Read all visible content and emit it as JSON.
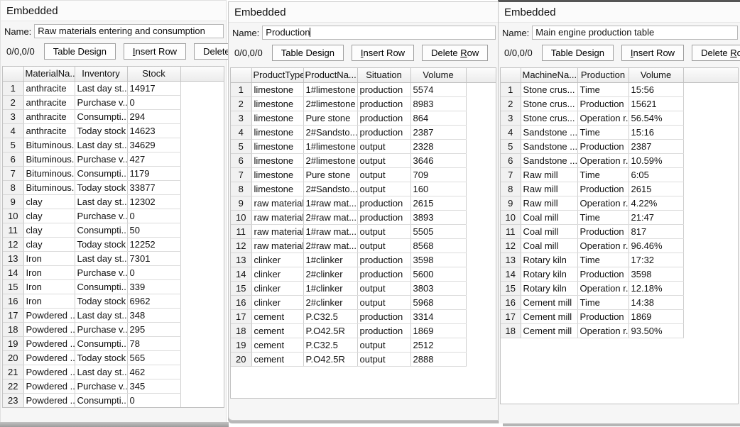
{
  "panels": [
    {
      "title": "Embedded",
      "name_label": "Name:",
      "name_value": "Raw materials entering and consumption",
      "status": "0/0,0/0",
      "buttons": {
        "table_design": "Table Design",
        "insert_row_pre": "",
        "insert_row_accel": "I",
        "insert_row_post": "nsert Row",
        "delete_row_pre": "Delete ",
        "delete_row_accel": "R",
        "delete_row_post": "ow"
      },
      "columns": [
        "MaterialNa...",
        "Inventory",
        "Stock"
      ],
      "rows": [
        [
          "1",
          "anthracite",
          "Last day st...",
          "14917"
        ],
        [
          "2",
          "anthracite",
          "Purchase v...",
          "0"
        ],
        [
          "3",
          "anthracite",
          "Consumpti...",
          "294"
        ],
        [
          "4",
          "anthracite",
          "Today stock",
          "14623"
        ],
        [
          "5",
          "Bituminous...",
          "Last day st...",
          "34629"
        ],
        [
          "6",
          "Bituminous...",
          "Purchase v...",
          "427"
        ],
        [
          "7",
          "Bituminous...",
          "Consumpti...",
          "1179"
        ],
        [
          "8",
          "Bituminous...",
          "Today stock",
          "33877"
        ],
        [
          "9",
          "clay",
          "Last day st...",
          "12302"
        ],
        [
          "10",
          "clay",
          "Purchase v...",
          "0"
        ],
        [
          "11",
          "clay",
          "Consumpti...",
          "50"
        ],
        [
          "12",
          "clay",
          "Today stock",
          "12252"
        ],
        [
          "13",
          "Iron",
          "Last day st...",
          "7301"
        ],
        [
          "14",
          "Iron",
          "Purchase v...",
          "0"
        ],
        [
          "15",
          "Iron",
          "Consumpti...",
          "339"
        ],
        [
          "16",
          "Iron",
          "Today stock",
          "6962"
        ],
        [
          "17",
          "Powdered ...",
          "Last day st...",
          "348"
        ],
        [
          "18",
          "Powdered ...",
          "Purchase v...",
          "295"
        ],
        [
          "19",
          "Powdered ...",
          "Consumpti...",
          "78"
        ],
        [
          "20",
          "Powdered ...",
          "Today stock",
          "565"
        ],
        [
          "21",
          "Powdered ...",
          "Last day st...",
          "462"
        ],
        [
          "22",
          "Powdered ...",
          "Purchase v...",
          "345"
        ],
        [
          "23",
          "Powdered ...",
          "Consumpti...",
          "0"
        ]
      ]
    },
    {
      "title": "Embedded",
      "name_label": "Name:",
      "name_value": "Production",
      "status": "0/0,0/0",
      "buttons": {
        "table_design": "Table Design",
        "insert_row_pre": "",
        "insert_row_accel": "I",
        "insert_row_post": "nsert Row",
        "delete_row_pre": "Delete ",
        "delete_row_accel": "R",
        "delete_row_post": "ow"
      },
      "columns": [
        "ProductType",
        "ProductNa...",
        "Situation",
        "Volume"
      ],
      "rows": [
        [
          "1",
          "limestone",
          "1#limestone",
          "production",
          "5574"
        ],
        [
          "2",
          "limestone",
          "2#limestone",
          "production",
          "8983"
        ],
        [
          "3",
          "limestone",
          "Pure stone",
          "production",
          "864"
        ],
        [
          "4",
          "limestone",
          "2#Sandsto...",
          "production",
          "2387"
        ],
        [
          "5",
          "limestone",
          "1#limestone",
          "output",
          "2328"
        ],
        [
          "6",
          "limestone",
          "2#limestone",
          "output",
          "3646"
        ],
        [
          "7",
          "limestone",
          "Pure stone",
          "output",
          "709"
        ],
        [
          "8",
          "limestone",
          "2#Sandsto...",
          "output",
          "160"
        ],
        [
          "9",
          "raw material",
          "1#raw mat...",
          "production",
          "2615"
        ],
        [
          "10",
          "raw material",
          "2#raw mat...",
          "production",
          "3893"
        ],
        [
          "11",
          "raw material",
          "1#raw mat...",
          "output",
          "5505"
        ],
        [
          "12",
          "raw material",
          "2#raw mat...",
          "output",
          "8568"
        ],
        [
          "13",
          "clinker",
          "1#clinker",
          "production",
          "3598"
        ],
        [
          "14",
          "clinker",
          "2#clinker",
          "production",
          "5600"
        ],
        [
          "15",
          "clinker",
          "1#clinker",
          "output",
          "3803"
        ],
        [
          "16",
          "clinker",
          "2#clinker",
          "output",
          "5968"
        ],
        [
          "17",
          "cement",
          "P.C32.5",
          "production",
          "3314"
        ],
        [
          "18",
          "cement",
          "P.O42.5R",
          "production",
          "1869"
        ],
        [
          "19",
          "cement",
          "P.C32.5",
          "output",
          "2512"
        ],
        [
          "20",
          "cement",
          "P.O42.5R",
          "output",
          "2888"
        ]
      ]
    },
    {
      "title": "Embedded",
      "name_label": "Name:",
      "name_value": "Main engine production table",
      "status": "0/0,0/0",
      "buttons": {
        "table_design": "Table Design",
        "insert_row_pre": "",
        "insert_row_accel": "I",
        "insert_row_post": "nsert Row",
        "delete_row_pre": "Delete ",
        "delete_row_accel": "R",
        "delete_row_post": "ow"
      },
      "columns": [
        "MachineNa...",
        "Production",
        "Volume"
      ],
      "rows": [
        [
          "1",
          "Stone crus...",
          "Time",
          "15:56"
        ],
        [
          "2",
          "Stone crus...",
          "Production",
          "15621"
        ],
        [
          "3",
          "Stone crus...",
          "Operation r...",
          "56.54%"
        ],
        [
          "4",
          "Sandstone ...",
          "Time",
          "15:16"
        ],
        [
          "5",
          "Sandstone ...",
          "Production",
          "2387"
        ],
        [
          "6",
          "Sandstone ...",
          "Operation r...",
          "10.59%"
        ],
        [
          "7",
          "Raw mill",
          "Time",
          "6:05"
        ],
        [
          "8",
          "Raw mill",
          "Production",
          "2615"
        ],
        [
          "9",
          "Raw mill",
          "Operation r...",
          "4.22%"
        ],
        [
          "10",
          "Coal mill",
          "Time",
          "21:47"
        ],
        [
          "11",
          "Coal mill",
          "Production",
          "817"
        ],
        [
          "12",
          "Coal mill",
          "Operation r...",
          "96.46%"
        ],
        [
          "13",
          "Rotary kiln",
          "Time",
          "17:32"
        ],
        [
          "14",
          "Rotary kiln",
          "Production",
          "3598"
        ],
        [
          "15",
          "Rotary kiln",
          "Operation r...",
          "12.18%"
        ],
        [
          "16",
          "Cement mill",
          "Time",
          "14:38"
        ],
        [
          "17",
          "Cement mill",
          "Production",
          "1869"
        ],
        [
          "18",
          "Cement mill",
          "Operation r...",
          "93.50%"
        ]
      ]
    }
  ]
}
